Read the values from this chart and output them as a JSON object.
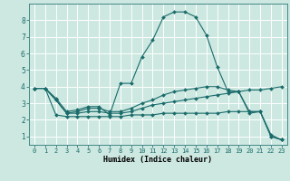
{
  "xlabel": "Humidex (Indice chaleur)",
  "bg_color": "#cce8e0",
  "grid_color": "#ffffff",
  "line_color": "#1a6b6b",
  "xlim": [
    -0.5,
    23.5
  ],
  "ylim": [
    0.5,
    9.0
  ],
  "xticks": [
    0,
    1,
    2,
    3,
    4,
    5,
    6,
    7,
    8,
    9,
    10,
    11,
    12,
    13,
    14,
    15,
    16,
    17,
    18,
    19,
    20,
    21,
    22,
    23
  ],
  "yticks": [
    1,
    2,
    3,
    4,
    5,
    6,
    7,
    8
  ],
  "series": [
    [
      3.9,
      3.9,
      3.3,
      2.5,
      2.6,
      2.8,
      2.8,
      2.3,
      4.2,
      4.2,
      5.8,
      6.8,
      8.2,
      8.5,
      8.5,
      8.2,
      7.1,
      5.2,
      3.7,
      3.7,
      2.4,
      2.5,
      1.0,
      0.8
    ],
    [
      3.9,
      3.9,
      3.2,
      2.4,
      2.4,
      2.5,
      2.5,
      2.4,
      2.4,
      2.5,
      2.7,
      2.9,
      3.0,
      3.1,
      3.2,
      3.3,
      3.4,
      3.5,
      3.6,
      3.7,
      3.8,
      3.8,
      3.9,
      4.0
    ],
    [
      3.9,
      3.9,
      2.3,
      2.2,
      2.2,
      2.2,
      2.2,
      2.2,
      2.2,
      2.3,
      2.3,
      2.3,
      2.4,
      2.4,
      2.4,
      2.4,
      2.4,
      2.4,
      2.5,
      2.5,
      2.5,
      2.5,
      1.1,
      0.8
    ],
    [
      3.9,
      3.9,
      3.2,
      2.4,
      2.5,
      2.7,
      2.7,
      2.5,
      2.5,
      2.7,
      3.0,
      3.2,
      3.5,
      3.7,
      3.8,
      3.9,
      4.0,
      4.0,
      3.8,
      3.7,
      2.5,
      2.5,
      1.0,
      0.8
    ]
  ],
  "tick_fontsize": 5.0,
  "xlabel_fontsize": 6.0,
  "marker_size": 2.0,
  "linewidth": 0.8
}
